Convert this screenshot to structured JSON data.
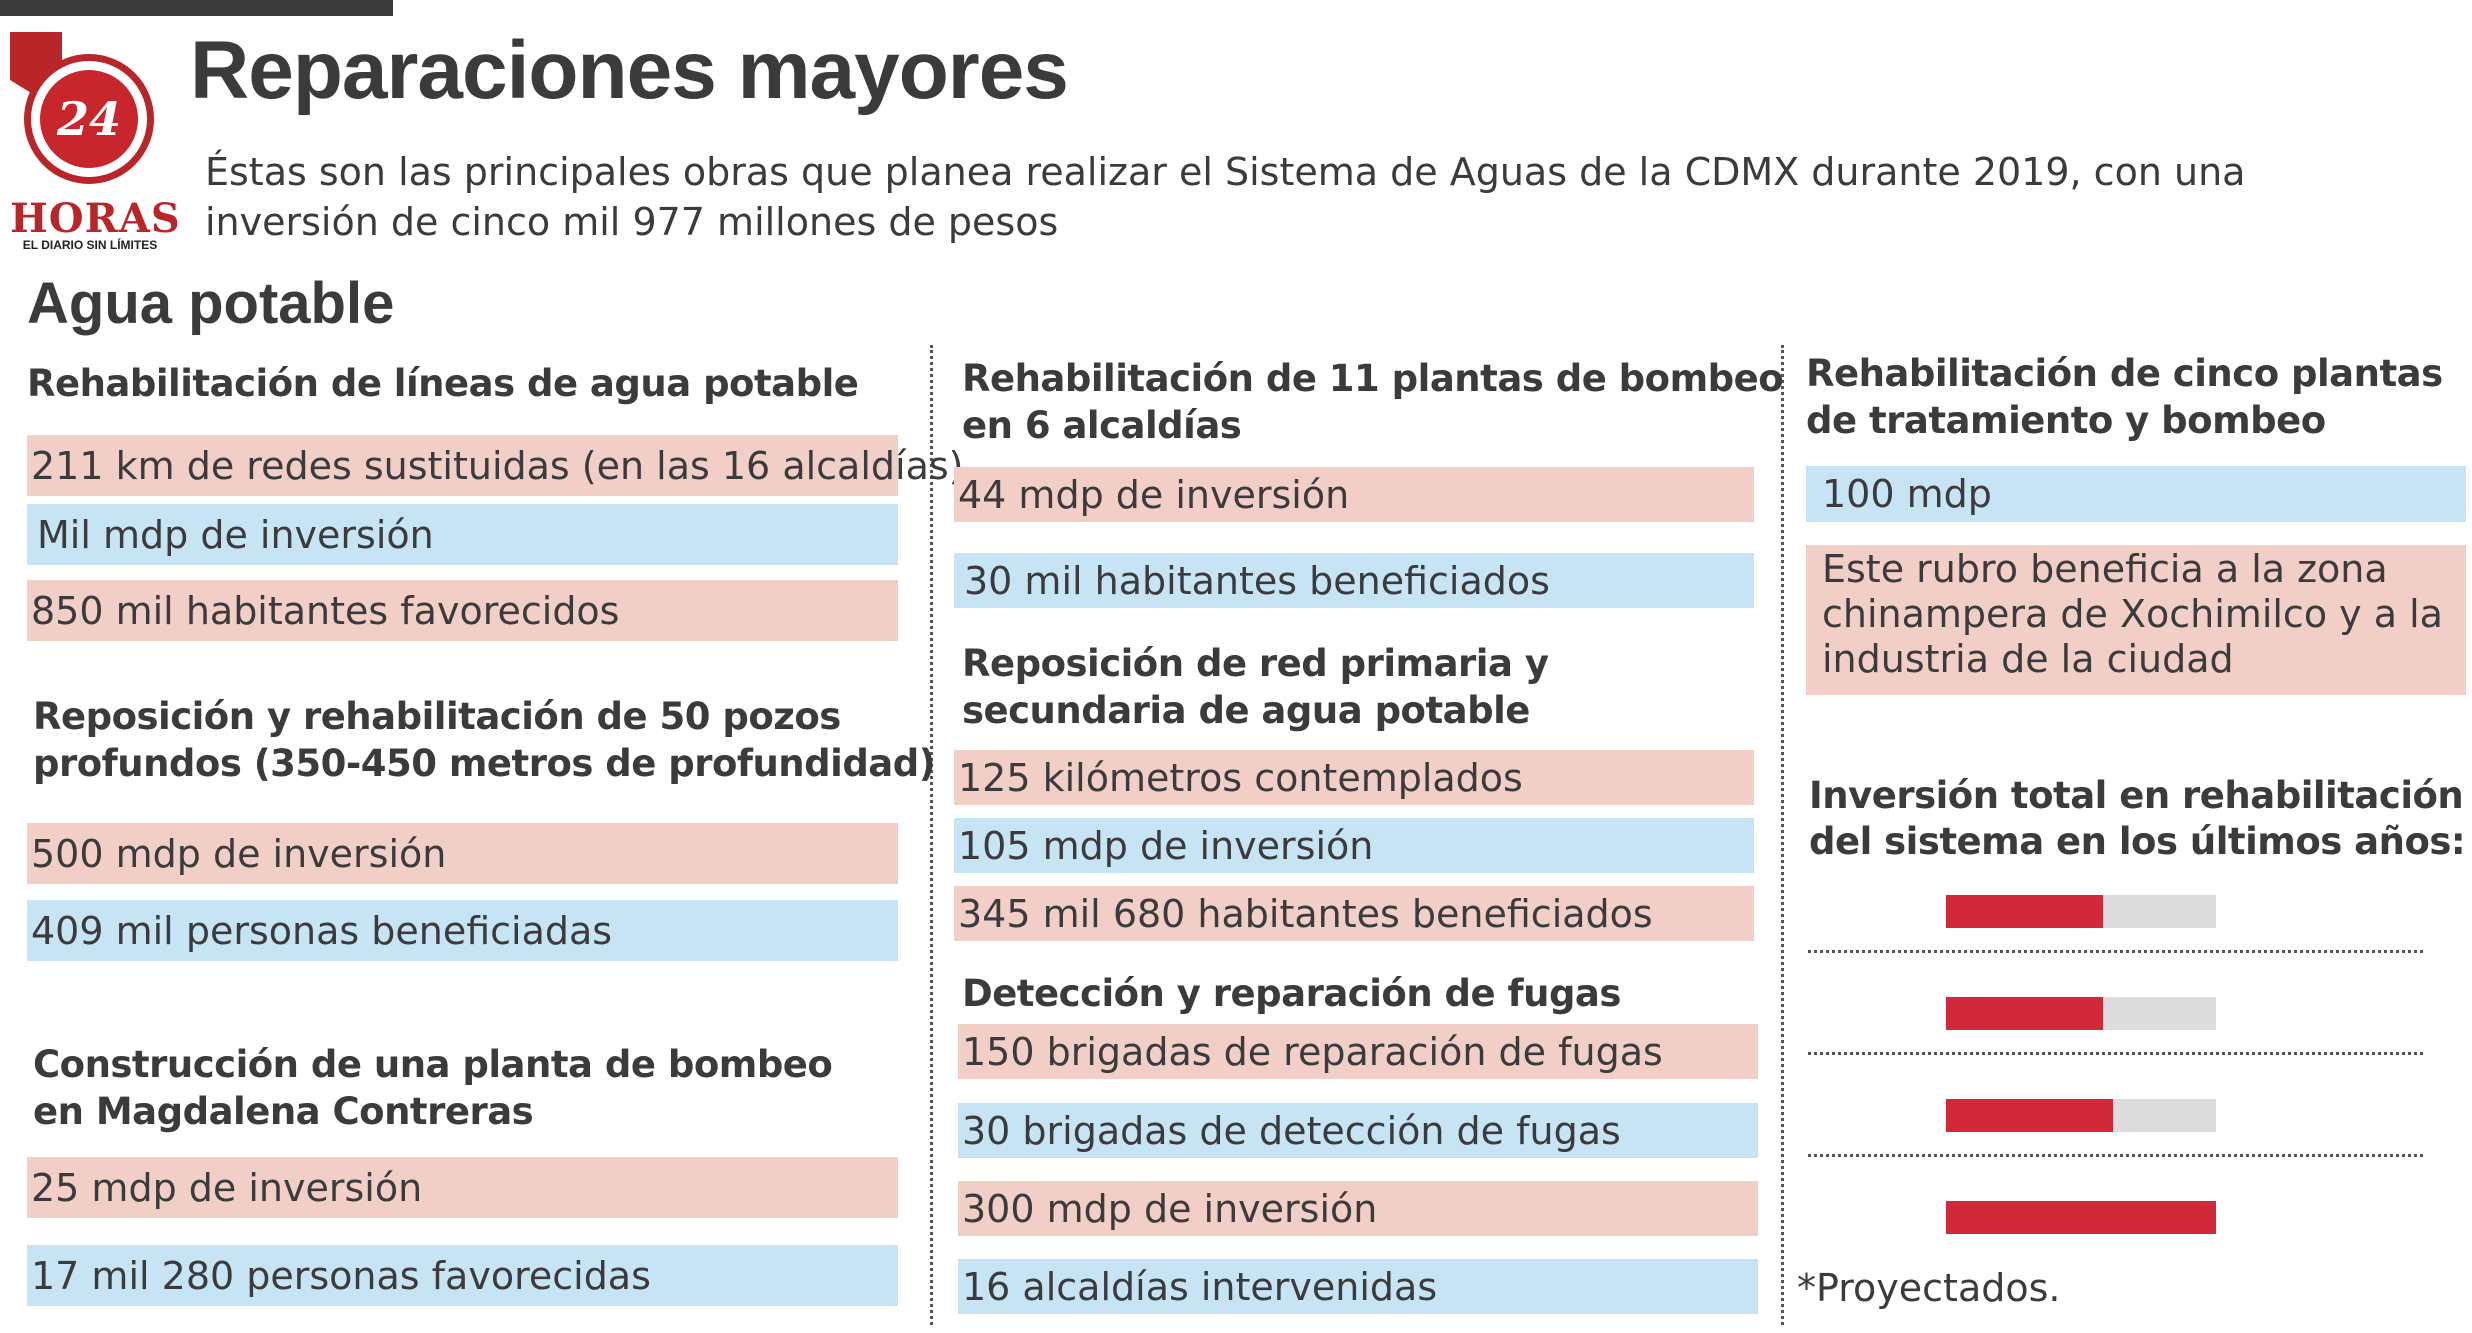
{
  "header": {
    "title": "Reparaciones mayores",
    "subtitle": "Éstas son las principales obras que planea realizar el Sistema de Aguas de la CDMX durante 2019, con una inversión de cinco mil 977 millones de pesos"
  },
  "logo": {
    "number": "24",
    "word": "HORAS",
    "tagline": "EL DIARIO SIN LÍMITES"
  },
  "section": "Agua potable",
  "col1": {
    "h1": "Rehabilitación de líneas de agua potable",
    "i1": "211 km de redes sustituidas (en las 16 alcaldías)",
    "i2": "Mil mdp de inversión",
    "i3": "850 mil habitantes favorecidos",
    "h2a": "Reposición y rehabilitación de 50 pozos",
    "h2b": "profundos (350-450 metros de profundidad)",
    "i4": "500 mdp de inversión",
    "i5": "409 mil personas beneficiadas",
    "h3a": "Construcción de una planta de bombeo",
    "h3b": "en Magdalena Contreras",
    "i6": "25 mdp de inversión",
    "i7": "17 mil 280 personas favorecidas"
  },
  "col2": {
    "h1a": "Rehabilitación de 11 plantas de bombeo",
    "h1b": "en 6 alcaldías",
    "i1": "44 mdp de inversión",
    "i2": "30 mil habitantes beneficiados",
    "h2a": "Reposición de red primaria y",
    "h2b": "secundaria de agua potable",
    "i3": "125 kilómetros contemplados",
    "i4": "105 mdp de inversión",
    "i5": "345 mil 680 habitantes beneficiados",
    "h3": "Detección y reparación de fugas",
    "i6": "150 brigadas de reparación de fugas",
    "i7": "30 brigadas de detección de fugas",
    "i8": "300 mdp de inversión",
    "i9": "16 alcaldías intervenidas"
  },
  "col3": {
    "h1a": "Rehabilitación de cinco plantas",
    "h1b": "de tratamiento y bombeo",
    "i1": "100 mdp",
    "i2": "Este rubro beneficia a la zona chinampera de Xochimilco y a la industria de la ciudad",
    "h2a": "Inversión total en rehabilitación",
    "h2b": "del sistema en los últimos años:",
    "note": "*Proyectados."
  },
  "chart_data": {
    "type": "bar",
    "orientation": "horizontal",
    "title": "Inversión total en rehabilitación del sistema en los últimos años:",
    "values_fraction": [
      0.58,
      0.58,
      0.62,
      1.0
    ],
    "colors": {
      "fill": "#d1283a",
      "track": "#dcdcdc"
    }
  }
}
